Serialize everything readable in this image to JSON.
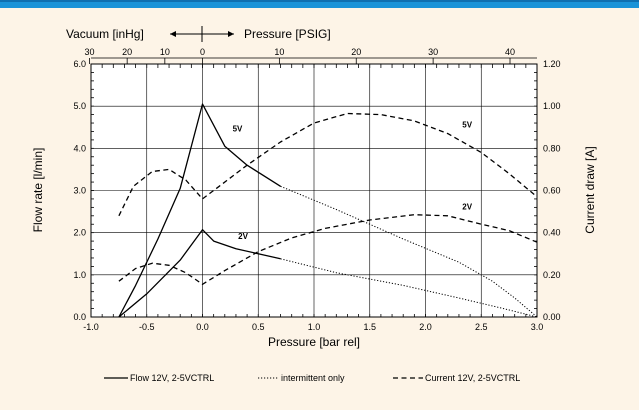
{
  "theme": {
    "accent": "#1a93d8",
    "background": "#fdf4e7",
    "plot_bg": "#ffffff"
  },
  "chart_data": {
    "type": "line",
    "title": "",
    "top_axis": {
      "vacuum_label": "Vacuum [inHg]",
      "pressure_label": "Pressure [PSIG]",
      "ticks": [
        "30",
        "20",
        "10",
        "0",
        "10",
        "20",
        "30",
        "40"
      ],
      "tick_psi": [
        -14.7,
        -9.8,
        -4.9,
        0,
        10,
        20,
        30,
        40
      ]
    },
    "xlabel": "Pressure [bar rel]",
    "ylabel_left": "Flow rate [l/min]",
    "ylabel_right": "Current draw [A]",
    "xlim": [
      -1.0,
      3.0
    ],
    "ylim_left": [
      0.0,
      6.0
    ],
    "ylim_right": [
      0.0,
      1.2
    ],
    "x_ticks": [
      "-1.0",
      "-0.5",
      "0.0",
      "0.5",
      "1.0",
      "1.5",
      "2.0",
      "2.5",
      "3.0"
    ],
    "x_tick_values": [
      -1.0,
      -0.5,
      0.0,
      0.5,
      1.0,
      1.5,
      2.0,
      2.5,
      3.0
    ],
    "y_ticks_left": [
      "0.0",
      "1.0",
      "2.0",
      "3.0",
      "4.0",
      "5.0",
      "6.0"
    ],
    "y_tick_values_left": [
      0,
      1,
      2,
      3,
      4,
      5,
      6
    ],
    "y_ticks_right": [
      "0.00",
      "0.20",
      "0.40",
      "0.60",
      "0.80",
      "1.00",
      "1.20"
    ],
    "y_tick_values_right": [
      0,
      0.2,
      0.4,
      0.6,
      0.8,
      1.0,
      1.2
    ],
    "grid": true,
    "legend_position": "bottom",
    "legend": [
      {
        "label": "Flow 12V, 2-5VCTRL",
        "style": "solid"
      },
      {
        "label": "intermittent only",
        "style": "dotted"
      },
      {
        "label": "Current 12V, 2-5VCTRL",
        "style": "dashed"
      }
    ],
    "annotations": [
      {
        "text": "5V",
        "x": 0.27,
        "y": 4.4
      },
      {
        "text": "2V",
        "x": 0.32,
        "y": 1.85
      },
      {
        "text": "5V",
        "x": 2.33,
        "y": 4.5
      },
      {
        "text": "2V",
        "x": 2.33,
        "y": 2.55
      }
    ],
    "series": [
      {
        "group": "flow-5v",
        "style": "solid",
        "axis": "left",
        "points": [
          [
            -0.75,
            0.0
          ],
          [
            -0.6,
            0.75
          ],
          [
            -0.4,
            1.85
          ],
          [
            -0.2,
            3.05
          ],
          [
            0.0,
            5.05
          ],
          [
            0.2,
            4.05
          ],
          [
            0.4,
            3.6
          ],
          [
            0.7,
            3.1
          ]
        ]
      },
      {
        "group": "flow-5v",
        "style": "dotted",
        "axis": "left",
        "points": [
          [
            0.7,
            3.1
          ],
          [
            1.2,
            2.55
          ],
          [
            1.8,
            1.85
          ],
          [
            2.3,
            1.3
          ],
          [
            2.6,
            0.85
          ],
          [
            2.8,
            0.45
          ],
          [
            3.0,
            0.0
          ]
        ]
      },
      {
        "group": "flow-2v",
        "style": "solid",
        "axis": "left",
        "points": [
          [
            -0.75,
            0.0
          ],
          [
            -0.5,
            0.55
          ],
          [
            -0.2,
            1.35
          ],
          [
            0.0,
            2.07
          ],
          [
            0.1,
            1.8
          ],
          [
            0.3,
            1.62
          ],
          [
            0.7,
            1.38
          ]
        ]
      },
      {
        "group": "flow-2v",
        "style": "dotted",
        "axis": "left",
        "points": [
          [
            0.7,
            1.38
          ],
          [
            1.2,
            1.05
          ],
          [
            1.8,
            0.75
          ],
          [
            2.3,
            0.45
          ],
          [
            2.7,
            0.2
          ],
          [
            3.0,
            0.0
          ]
        ]
      },
      {
        "group": "current-5v",
        "style": "dashed",
        "axis": "right",
        "points": [
          [
            -0.75,
            0.48
          ],
          [
            -0.62,
            0.62
          ],
          [
            -0.45,
            0.69
          ],
          [
            -0.3,
            0.7
          ],
          [
            -0.15,
            0.65
          ],
          [
            0.0,
            0.56
          ],
          [
            0.15,
            0.62
          ],
          [
            0.4,
            0.72
          ],
          [
            0.7,
            0.83
          ],
          [
            1.0,
            0.92
          ],
          [
            1.3,
            0.965
          ],
          [
            1.6,
            0.96
          ],
          [
            1.9,
            0.93
          ],
          [
            2.2,
            0.87
          ],
          [
            2.5,
            0.78
          ],
          [
            2.75,
            0.68
          ],
          [
            3.0,
            0.57
          ]
        ]
      },
      {
        "group": "current-2v",
        "style": "dashed",
        "axis": "right",
        "points": [
          [
            -0.75,
            0.17
          ],
          [
            -0.6,
            0.23
          ],
          [
            -0.45,
            0.255
          ],
          [
            -0.3,
            0.245
          ],
          [
            -0.15,
            0.21
          ],
          [
            0.0,
            0.155
          ],
          [
            0.2,
            0.22
          ],
          [
            0.5,
            0.31
          ],
          [
            0.8,
            0.375
          ],
          [
            1.1,
            0.42
          ],
          [
            1.5,
            0.46
          ],
          [
            1.9,
            0.485
          ],
          [
            2.2,
            0.48
          ],
          [
            2.5,
            0.44
          ],
          [
            2.75,
            0.41
          ],
          [
            3.0,
            0.355
          ]
        ]
      }
    ]
  }
}
